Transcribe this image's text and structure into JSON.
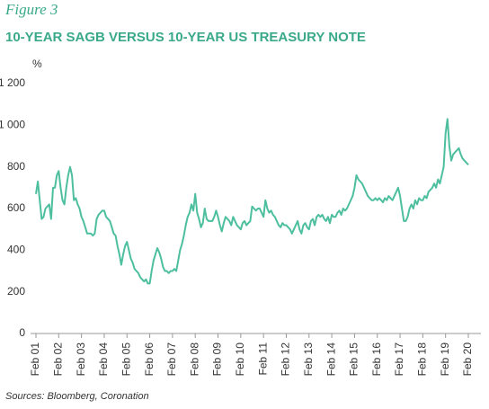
{
  "figure_label": "Figure 3",
  "chart_data": {
    "type": "line",
    "title": "10-YEAR SAGB VERSUS 10-YEAR US TREASURY NOTE",
    "y_label": "%",
    "source": "Sources: Bloomberg, Coronation",
    "xlim": [
      "2001-02",
      "2020-02"
    ],
    "xticks": [
      {
        "value": "2001-02",
        "label": "Feb 01"
      },
      {
        "value": "2002-02",
        "label": "Feb 02"
      },
      {
        "value": "2003-02",
        "label": "Feb 03"
      },
      {
        "value": "2004-02",
        "label": "Feb 04"
      },
      {
        "value": "2005-02",
        "label": "Feb 05"
      },
      {
        "value": "2006-02",
        "label": "Feb 06"
      },
      {
        "value": "2007-02",
        "label": "Feb 07"
      },
      {
        "value": "2008-02",
        "label": "Feb 08"
      },
      {
        "value": "2009-02",
        "label": "Feb 09"
      },
      {
        "value": "2010-02",
        "label": "Feb 10"
      },
      {
        "value": "2011-02",
        "label": "Feb 11"
      },
      {
        "value": "2012-02",
        "label": "Feb 12"
      },
      {
        "value": "2013-02",
        "label": "Feb 13"
      },
      {
        "value": "2014-02",
        "label": "Feb 14"
      },
      {
        "value": "2015-02",
        "label": "Feb 15"
      },
      {
        "value": "2016-02",
        "label": "Feb 16"
      },
      {
        "value": "2017-02",
        "label": "Feb 17"
      },
      {
        "value": "2018-02",
        "label": "Feb 18"
      },
      {
        "value": "2019-02",
        "label": "Feb 19"
      },
      {
        "value": "2020-02",
        "label": "Feb 20"
      }
    ],
    "ylim": [
      0,
      1200
    ],
    "yticks": [
      0,
      200,
      400,
      600,
      800,
      {
        "value": 1000,
        "label": "1 000"
      },
      {
        "value": 1200,
        "label": "1 200"
      }
    ],
    "grid": false,
    "color": "#4dbf9f",
    "x": [
      "2001-02",
      "2001-03",
      "2001-04",
      "2001-05",
      "2001-06",
      "2001-07",
      "2001-08",
      "2001-09",
      "2001-10",
      "2001-11",
      "2001-12",
      "2002-01",
      "2002-02",
      "2002-03",
      "2002-04",
      "2002-05",
      "2002-06",
      "2002-07",
      "2002-08",
      "2002-09",
      "2002-10",
      "2002-11",
      "2002-12",
      "2003-01",
      "2003-02",
      "2003-03",
      "2003-04",
      "2003-05",
      "2003-06",
      "2003-07",
      "2003-08",
      "2003-09",
      "2003-10",
      "2003-11",
      "2003-12",
      "2004-01",
      "2004-02",
      "2004-03",
      "2004-04",
      "2004-05",
      "2004-06",
      "2004-07",
      "2004-08",
      "2004-09",
      "2004-10",
      "2004-11",
      "2004-12",
      "2005-01",
      "2005-02",
      "2005-03",
      "2005-04",
      "2005-05",
      "2005-06",
      "2005-07",
      "2005-08",
      "2005-09",
      "2005-10",
      "2005-11",
      "2005-12",
      "2006-01",
      "2006-02",
      "2006-03",
      "2006-04",
      "2006-05",
      "2006-06",
      "2006-07",
      "2006-08",
      "2006-09",
      "2006-10",
      "2006-11",
      "2006-12",
      "2007-01",
      "2007-02",
      "2007-03",
      "2007-04",
      "2007-05",
      "2007-06",
      "2007-07",
      "2007-08",
      "2007-09",
      "2007-10",
      "2007-11",
      "2007-12",
      "2008-01",
      "2008-02",
      "2008-03",
      "2008-04",
      "2008-05",
      "2008-06",
      "2008-07",
      "2008-08",
      "2008-09",
      "2008-10",
      "2008-11",
      "2008-12",
      "2009-01",
      "2009-02",
      "2009-03",
      "2009-04",
      "2009-05",
      "2009-06",
      "2009-07",
      "2009-08",
      "2009-09",
      "2009-10",
      "2009-11",
      "2009-12",
      "2010-01",
      "2010-02",
      "2010-03",
      "2010-04",
      "2010-05",
      "2010-06",
      "2010-07",
      "2010-08",
      "2010-09",
      "2010-10",
      "2010-11",
      "2010-12",
      "2011-01",
      "2011-02",
      "2011-03",
      "2011-04",
      "2011-05",
      "2011-06",
      "2011-07",
      "2011-08",
      "2011-09",
      "2011-10",
      "2011-11",
      "2011-12",
      "2012-01",
      "2012-02",
      "2012-03",
      "2012-04",
      "2012-05",
      "2012-06",
      "2012-07",
      "2012-08",
      "2012-09",
      "2012-10",
      "2012-11",
      "2012-12",
      "2013-01",
      "2013-02",
      "2013-03",
      "2013-04",
      "2013-05",
      "2013-06",
      "2013-07",
      "2013-08",
      "2013-09",
      "2013-10",
      "2013-11",
      "2013-12",
      "2014-01",
      "2014-02",
      "2014-03",
      "2014-04",
      "2014-05",
      "2014-06",
      "2014-07",
      "2014-08",
      "2014-09",
      "2014-10",
      "2014-11",
      "2014-12",
      "2015-01",
      "2015-02",
      "2015-03",
      "2015-04",
      "2015-05",
      "2015-06",
      "2015-07",
      "2015-08",
      "2015-09",
      "2015-10",
      "2015-11",
      "2015-12",
      "2016-01",
      "2016-02",
      "2016-03",
      "2016-04",
      "2016-05",
      "2016-06",
      "2016-07",
      "2016-08",
      "2016-09",
      "2016-10",
      "2016-11",
      "2016-12",
      "2017-01",
      "2017-02",
      "2017-03",
      "2017-04",
      "2017-05",
      "2017-06",
      "2017-07",
      "2017-08",
      "2017-09",
      "2017-10",
      "2017-11",
      "2017-12",
      "2018-01",
      "2018-02",
      "2018-03",
      "2018-04",
      "2018-05",
      "2018-06",
      "2018-07",
      "2018-08",
      "2018-09",
      "2018-10",
      "2018-11",
      "2018-12",
      "2019-01",
      "2019-02",
      "2019-03",
      "2019-04",
      "2019-05",
      "2019-06",
      "2019-07",
      "2019-08",
      "2019-09",
      "2019-10",
      "2019-11",
      "2019-12",
      "2020-01",
      "2020-02"
    ],
    "values": [
      670,
      730,
      640,
      550,
      560,
      600,
      610,
      620,
      550,
      700,
      700,
      760,
      780,
      700,
      640,
      620,
      700,
      760,
      800,
      760,
      640,
      650,
      620,
      600,
      560,
      540,
      510,
      480,
      480,
      480,
      470,
      480,
      550,
      570,
      580,
      590,
      590,
      560,
      550,
      540,
      510,
      480,
      470,
      420,
      380,
      330,
      380,
      420,
      440,
      400,
      360,
      340,
      310,
      300,
      290,
      270,
      260,
      250,
      260,
      240,
      240,
      300,
      350,
      380,
      410,
      390,
      360,
      320,
      300,
      300,
      290,
      300,
      300,
      310,
      300,
      350,
      400,
      430,
      470,
      520,
      560,
      580,
      620,
      590,
      670,
      580,
      550,
      510,
      530,
      600,
      550,
      540,
      540,
      540,
      560,
      590,
      560,
      520,
      490,
      530,
      560,
      550,
      540,
      520,
      560,
      540,
      520,
      510,
      500,
      530,
      540,
      520,
      530,
      540,
      610,
      600,
      590,
      600,
      600,
      580,
      560,
      640,
      600,
      580,
      590,
      570,
      560,
      540,
      520,
      510,
      530,
      520,
      520,
      510,
      500,
      480,
      500,
      520,
      540,
      500,
      480,
      520,
      530,
      510,
      500,
      540,
      550,
      520,
      560,
      570,
      560,
      570,
      550,
      540,
      560,
      530,
      570,
      560,
      560,
      580,
      590,
      570,
      600,
      590,
      600,
      620,
      640,
      660,
      700,
      760,
      740,
      730,
      720,
      700,
      680,
      660,
      650,
      640,
      640,
      650,
      640,
      650,
      640,
      630,
      650,
      640,
      660,
      650,
      640,
      660,
      680,
      700,
      660,
      600,
      540,
      540,
      560,
      600,
      620,
      600,
      640,
      620,
      650,
      640,
      640,
      660,
      650,
      680,
      690,
      700,
      720,
      700,
      740,
      720,
      760,
      800,
      960,
      1030,
      900,
      830,
      860,
      870,
      880,
      890,
      860,
      840,
      830,
      820,
      810
    ]
  }
}
